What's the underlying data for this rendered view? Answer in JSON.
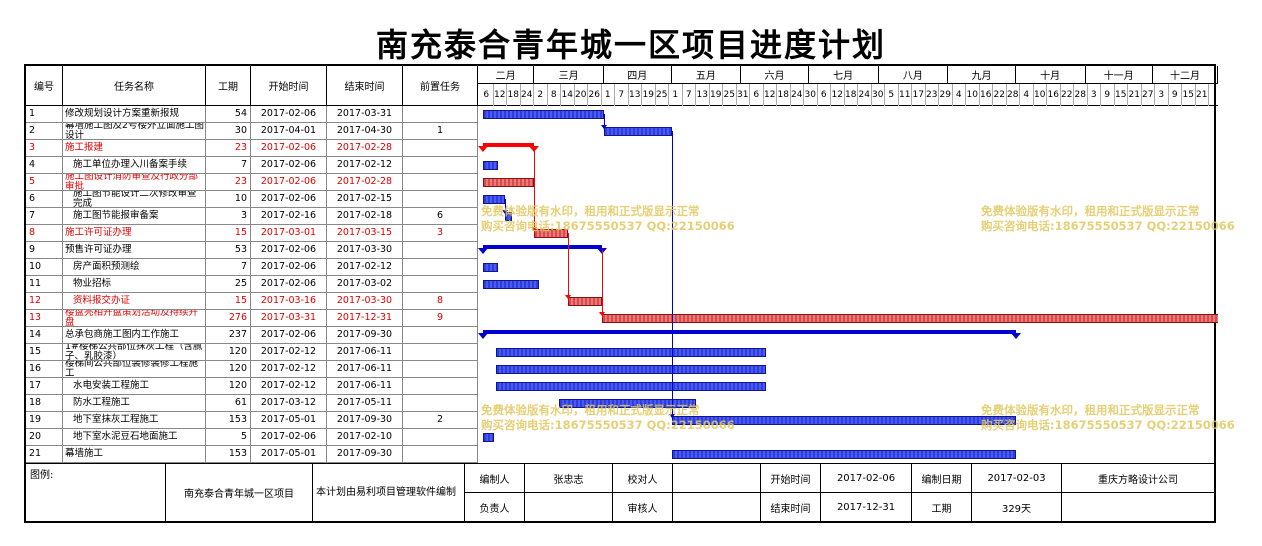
{
  "title": "南充泰合青年城一区项目进度计划",
  "headers": {
    "id": "编号",
    "name": "任务名称",
    "duration": "工期",
    "start": "开始时间",
    "end": "结束时间",
    "pred": "前置任务"
  },
  "months": [
    "二月",
    "三月",
    "四月",
    "五月",
    "六月",
    "七月",
    "八月",
    "九月",
    "十月",
    "十一月",
    "十二月"
  ],
  "ticks": [
    "6",
    "12",
    "18",
    "24",
    "2",
    "8",
    "14",
    "20",
    "26",
    "1",
    "7",
    "13",
    "19",
    "25",
    "1",
    "7",
    "13",
    "19",
    "25",
    "31",
    "6",
    "12",
    "18",
    "24",
    "30",
    "6",
    "12",
    "18",
    "24",
    "30",
    "5",
    "11",
    "17",
    "23",
    "29",
    "4",
    "10",
    "16",
    "22",
    "28",
    "4",
    "10",
    "16",
    "22",
    "28",
    "3",
    "9",
    "15",
    "21",
    "27",
    "3",
    "9",
    "15",
    "21"
  ],
  "tasks": [
    {
      "id": "1",
      "name": "修改规划设计方案重新报规",
      "duration": "54",
      "start": "2017-02-06",
      "end": "2017-03-31",
      "pred": "",
      "red": false
    },
    {
      "id": "2",
      "name": "幕墙施工图及2号楼外立面施工图设计",
      "duration": "30",
      "start": "2017-04-01",
      "end": "2017-04-30",
      "pred": "1",
      "red": false
    },
    {
      "id": "3",
      "name": "施工报建",
      "duration": "23",
      "start": "2017-02-06",
      "end": "2017-02-28",
      "pred": "",
      "red": true
    },
    {
      "id": "4",
      "name": "施工单位办理入川备案手续",
      "duration": "7",
      "start": "2017-02-06",
      "end": "2017-02-12",
      "pred": "",
      "red": false
    },
    {
      "id": "5",
      "name": "施工图设计消防审查及行政分部审批",
      "duration": "23",
      "start": "2017-02-06",
      "end": "2017-02-28",
      "pred": "",
      "red": true
    },
    {
      "id": "6",
      "name": "施工图节能设计二次修改审查完成",
      "duration": "10",
      "start": "2017-02-06",
      "end": "2017-02-15",
      "pred": "",
      "red": false
    },
    {
      "id": "7",
      "name": "施工图节能报审备案",
      "duration": "3",
      "start": "2017-02-16",
      "end": "2017-02-18",
      "pred": "6",
      "red": false
    },
    {
      "id": "8",
      "name": "施工许可证办理",
      "duration": "15",
      "start": "2017-03-01",
      "end": "2017-03-15",
      "pred": "3",
      "red": true
    },
    {
      "id": "9",
      "name": "预售许可证办理",
      "duration": "53",
      "start": "2017-02-06",
      "end": "2017-03-30",
      "pred": "",
      "red": false
    },
    {
      "id": "10",
      "name": "房产面积预测绘",
      "duration": "7",
      "start": "2017-02-06",
      "end": "2017-02-12",
      "pred": "",
      "red": false
    },
    {
      "id": "11",
      "name": "物业招标",
      "duration": "25",
      "start": "2017-02-06",
      "end": "2017-03-02",
      "pred": "",
      "red": false
    },
    {
      "id": "12",
      "name": "资料报交办证",
      "duration": "15",
      "start": "2017-03-16",
      "end": "2017-03-30",
      "pred": "8",
      "red": true
    },
    {
      "id": "13",
      "name": "楼盘亮相开盘策划活动及持续开盘",
      "duration": "276",
      "start": "2017-03-31",
      "end": "2017-12-31",
      "pred": "9",
      "red": true
    },
    {
      "id": "14",
      "name": "总承包商施工图内工作施工",
      "duration": "237",
      "start": "2017-02-06",
      "end": "2017-09-30",
      "pred": "",
      "red": false
    },
    {
      "id": "15",
      "name": "1#楼梯公共部位抹灰工程（含腻子、乳胶漆）",
      "duration": "120",
      "start": "2017-02-12",
      "end": "2017-06-11",
      "pred": "",
      "red": false
    },
    {
      "id": "16",
      "name": "楼梯间公共部位装修装修工程施工",
      "duration": "120",
      "start": "2017-02-12",
      "end": "2017-06-11",
      "pred": "",
      "red": false
    },
    {
      "id": "17",
      "name": "水电安装工程施工",
      "duration": "120",
      "start": "2017-02-12",
      "end": "2017-06-11",
      "pred": "",
      "red": false
    },
    {
      "id": "18",
      "name": "防水工程施工",
      "duration": "61",
      "start": "2017-03-12",
      "end": "2017-05-11",
      "pred": "",
      "red": false
    },
    {
      "id": "19",
      "name": "地下室抹灰工程施工",
      "duration": "153",
      "start": "2017-05-01",
      "end": "2017-09-30",
      "pred": "2",
      "red": false
    },
    {
      "id": "20",
      "name": "地下室水泥豆石地面施工",
      "duration": "5",
      "start": "2017-02-06",
      "end": "2017-02-10",
      "pred": "",
      "red": false
    },
    {
      "id": "21",
      "name": "幕墙施工",
      "duration": "153",
      "start": "2017-05-01",
      "end": "2017-09-30",
      "pred": "",
      "red": false
    }
  ],
  "watermark": {
    "line1": "免费体验版有水印，租用和正式版显示正常",
    "line2": "购买咨询电话:18675550537 QQ:22150066"
  },
  "footer": {
    "legend_label": "图例:",
    "project": "南充泰合青年城一区项目",
    "made_by": "本计划由易利项目管理软件编制",
    "editor_label": "编制人",
    "editor": "张忠志",
    "checker_label": "校对人",
    "checker": "",
    "start_label": "开始时间",
    "start": "2017-02-06",
    "date_label": "编制日期",
    "date": "2017-02-03",
    "company": "重庆方略设计公司",
    "owner_label": "负责人",
    "owner": "",
    "reviewer_label": "审核人",
    "reviewer": "",
    "end_label": "结束时间",
    "end": "2017-12-31",
    "duration_label": "工期",
    "duration": "329天"
  },
  "colors": {
    "normal_bar": "#2d3ee0",
    "critical_bar": "#d94b4b",
    "critical_text": "#e00000",
    "watermark": "#e2c860"
  }
}
